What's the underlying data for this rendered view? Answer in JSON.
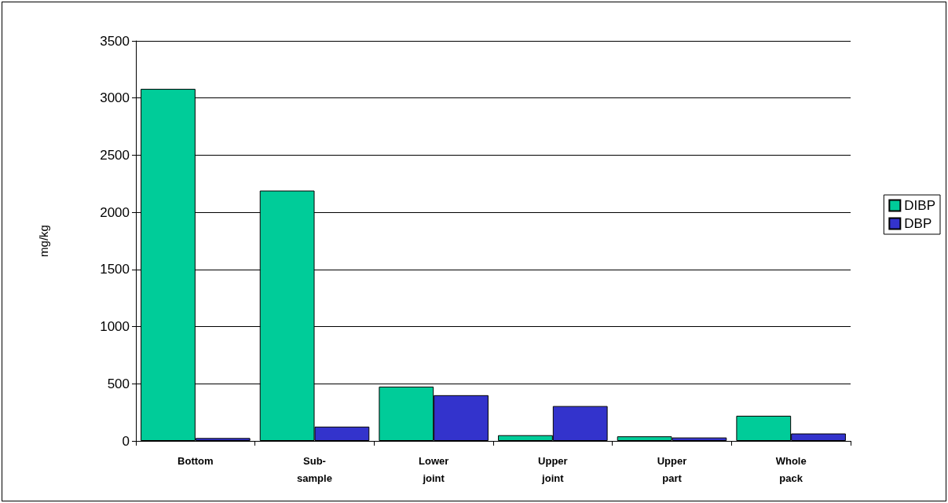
{
  "chart_data": {
    "type": "bar",
    "ylabel": "mg/kg",
    "categories": [
      "Bottom",
      "Sub-sample",
      "Lower joint",
      "Upper joint",
      "Upper part",
      "Whole pack"
    ],
    "series": [
      {
        "name": "DIBP",
        "color": "#00cc99",
        "values": [
          3080,
          2190,
          475,
          50,
          40,
          220
        ]
      },
      {
        "name": "DBP",
        "color": "#3333cc",
        "values": [
          25,
          125,
          400,
          305,
          30,
          65
        ]
      }
    ],
    "ylim": [
      0,
      3500
    ],
    "yticks": [
      0,
      500,
      1000,
      1500,
      2000,
      2500,
      3000,
      3500
    ],
    "grid": "y",
    "legend": "right"
  }
}
